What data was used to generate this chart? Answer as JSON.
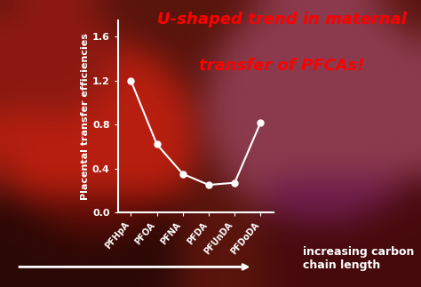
{
  "categories": [
    "PFHpA",
    "PFOA",
    "PFNA",
    "PFDA",
    "PFUnDA",
    "PFDoDA"
  ],
  "values": [
    1.2,
    0.62,
    0.35,
    0.25,
    0.27,
    0.82
  ],
  "line_color": "white",
  "marker_color": "white",
  "marker_size": 5,
  "line_width": 1.5,
  "ylim": [
    0.0,
    1.75
  ],
  "yticks": [
    0.0,
    0.4,
    0.8,
    1.2,
    1.6
  ],
  "ylabel": "Placental transfer efficiencies",
  "ylabel_color": "white",
  "ylabel_fontsize": 8,
  "tick_color": "white",
  "tick_fontsize": 8,
  "xlabel_arrow_text": "increasing carbon\nchain length",
  "xlabel_arrow_color": "white",
  "xlabel_arrow_fontsize": 9,
  "annotation_line1": "U-shaped trend in maternal",
  "annotation_line2": "transfer of PFCAs!",
  "annotation_color": "red",
  "annotation_fontsize": 13,
  "annotation_fontweight": "bold",
  "spine_color": "white"
}
